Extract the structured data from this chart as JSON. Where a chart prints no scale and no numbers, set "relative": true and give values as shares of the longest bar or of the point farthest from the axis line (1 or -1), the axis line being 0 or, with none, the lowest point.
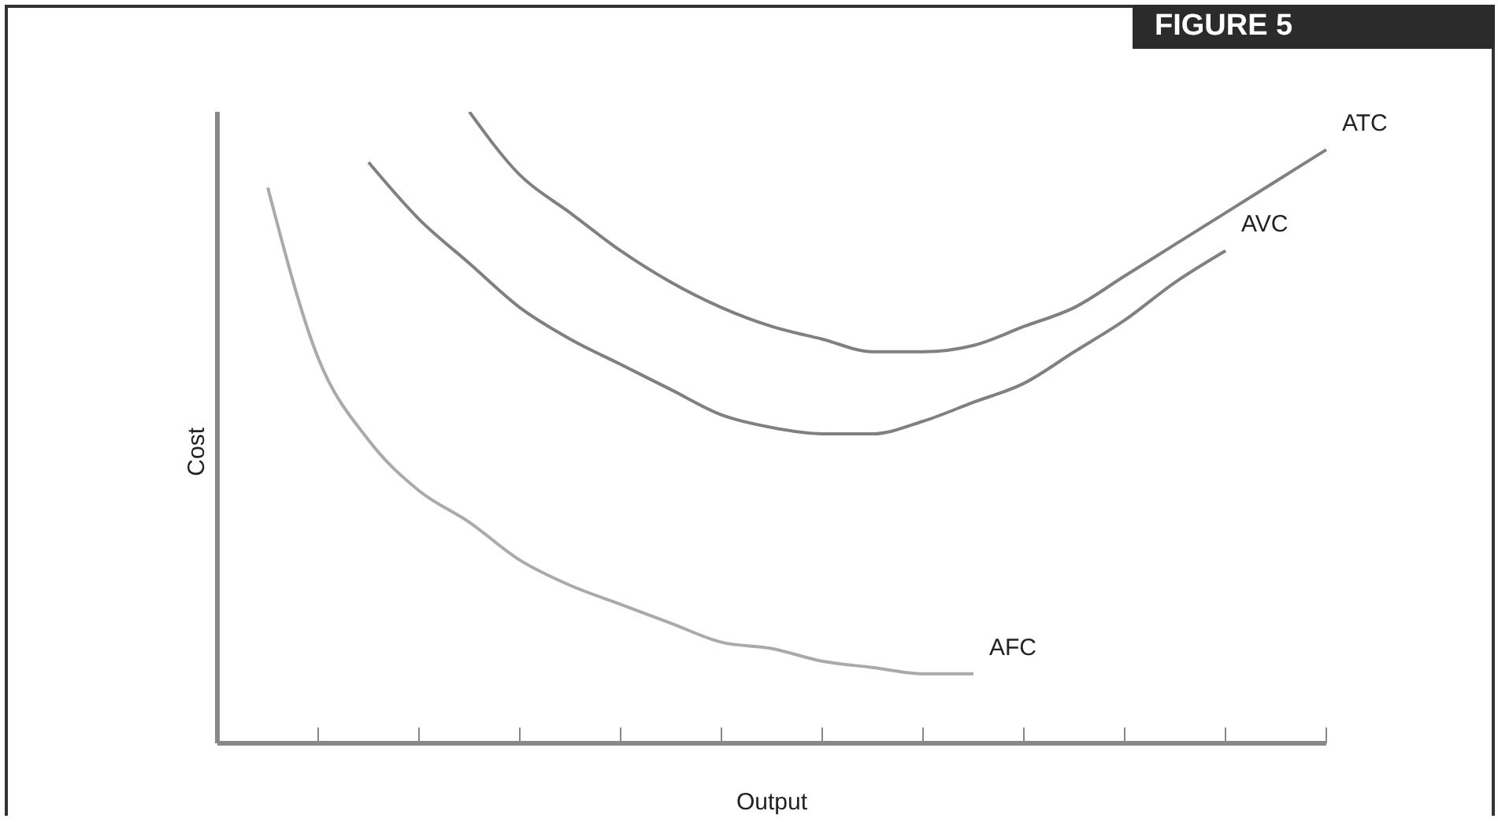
{
  "chart_data": {
    "type": "line",
    "title": "FIGURE 5",
    "xlabel": "Output",
    "ylabel": "Cost",
    "relative": true,
    "marker": "none",
    "grid": false,
    "legend": false,
    "categories": [
      null,
      null,
      null,
      null,
      null,
      null,
      null,
      null,
      null,
      null,
      null,
      null,
      null,
      null,
      null,
      null,
      null,
      null,
      null,
      null,
      null,
      null,
      null
    ],
    "series": [
      {
        "name": "ATC",
        "color": "#808080",
        "values": [
          null,
          null,
          null,
          null,
          null,
          1,
          0.9,
          0.84,
          0.78,
          0.73,
          0.69,
          0.66,
          0.64,
          0.62,
          0.62,
          0.63,
          0.66,
          0.69,
          0.74,
          0.79,
          0.84,
          0.89,
          0.94
        ]
      },
      {
        "name": "AVC",
        "color": "#808080",
        "values": [
          null,
          null,
          null,
          0.92,
          0.83,
          0.76,
          0.69,
          0.64,
          0.6,
          0.56,
          0.52,
          0.5,
          0.49,
          0.49,
          0.51,
          0.54,
          0.57,
          0.62,
          0.67,
          0.73,
          0.78,
          null,
          null
        ]
      },
      {
        "name": "AFC",
        "color": "#aaaaaa",
        "values": [
          null,
          0.88,
          0.61,
          0.48,
          0.4,
          0.35,
          0.29,
          0.25,
          0.22,
          0.19,
          0.16,
          0.15,
          0.13,
          0.12,
          0.11,
          0.11,
          null,
          null,
          null,
          null,
          null,
          null,
          null
        ]
      }
    ]
  }
}
